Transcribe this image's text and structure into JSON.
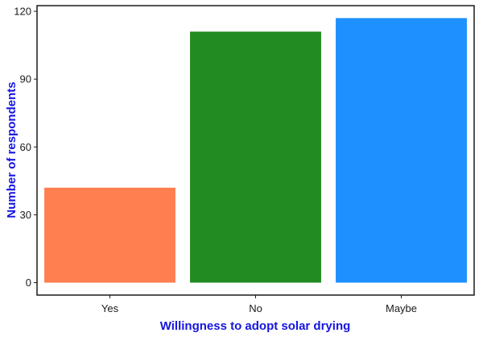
{
  "chart_data": {
    "type": "bar",
    "title": "",
    "xlabel": "Willingness to adopt solar drying",
    "ylabel": "Number of respondents",
    "categories": [
      "Yes",
      "No",
      "Maybe"
    ],
    "values": [
      42,
      111,
      117
    ],
    "bar_colors": [
      "#ff7f50",
      "#228b22",
      "#1e90ff"
    ],
    "ylim": [
      -5.5,
      122.5
    ],
    "yticks": [
      0,
      30,
      60,
      90,
      120
    ],
    "ytick_labels": [
      "0",
      "30",
      "60",
      "90",
      "120"
    ],
    "grid": false,
    "legend": "none",
    "axis_title_color": "#1515e0"
  }
}
